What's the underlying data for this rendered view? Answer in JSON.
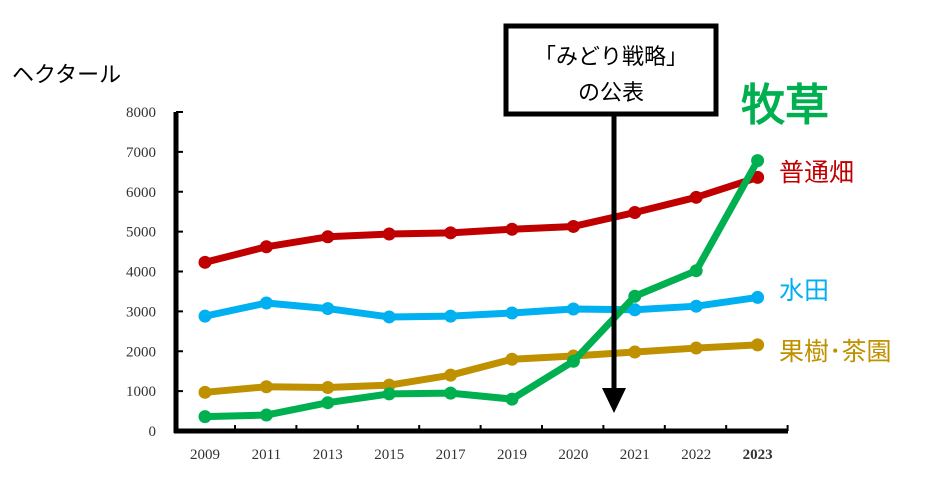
{
  "chart_data": {
    "type": "line",
    "ylabel": "ヘクタール",
    "ylim": [
      0,
      8000
    ],
    "yticks": [
      0,
      1000,
      2000,
      3000,
      4000,
      5000,
      6000,
      7000,
      8000
    ],
    "categories": [
      "2009",
      "2011",
      "2013",
      "2015",
      "2017",
      "2019",
      "2020",
      "2021",
      "2022",
      "2023"
    ],
    "grid": false,
    "series": [
      {
        "name": "普通畑",
        "color": "#c00000",
        "values": [
          4230,
          4620,
          4870,
          4940,
          4970,
          5060,
          5130,
          5480,
          5860,
          6360
        ]
      },
      {
        "name": "水田",
        "color": "#00b0f0",
        "values": [
          2880,
          3210,
          3070,
          2860,
          2880,
          2960,
          3060,
          3040,
          3130,
          3350
        ]
      },
      {
        "name": "果樹･茶園",
        "color": "#bf9000",
        "values": [
          970,
          1110,
          1090,
          1150,
          1400,
          1800,
          1880,
          1980,
          2080,
          2160
        ]
      },
      {
        "name": "牧草",
        "color": "#00b050",
        "values": [
          360,
          400,
          710,
          930,
          950,
          800,
          1750,
          3380,
          4020,
          6780
        ]
      }
    ],
    "annotations": [
      {
        "text_line1": "「みどり戦略」",
        "text_line2": "の公表",
        "category": "2021"
      }
    ]
  }
}
